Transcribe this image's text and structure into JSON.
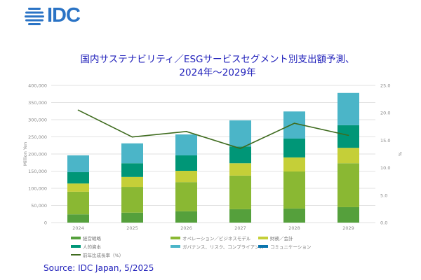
{
  "logo": {
    "text": "IDC"
  },
  "title": {
    "line1": "国内サステナビリティ／ESGサービスセグメント別支出額予測、",
    "line2": "2024年～2029年"
  },
  "source": "Source: IDC Japan, 5/2025",
  "chart_data": {
    "type": "bar",
    "stacked": true,
    "categories": [
      "2024",
      "2025",
      "2026",
      "2027",
      "2028",
      "2029"
    ],
    "ylabel": "Million Yen",
    "ylim": [
      0,
      400000
    ],
    "yticks": [
      "0",
      "50,000",
      "100,000",
      "150,000",
      "200,000",
      "250,000",
      "300,000",
      "350,000",
      "400,000"
    ],
    "y2label": "%",
    "y2lim": [
      0,
      25
    ],
    "y2ticks": [
      "0.0",
      "5.0",
      "10.0",
      "15.0",
      "20.0",
      "25.0"
    ],
    "grid": true,
    "legend_position": "bottom",
    "series": [
      {
        "name": "経営戦略",
        "color": "#55a03c",
        "values": [
          24000,
          29000,
          33000,
          39000,
          41000,
          45000
        ]
      },
      {
        "name": "オペレーション／ビジネスモデル",
        "color": "#8ab833",
        "values": [
          66000,
          75000,
          85000,
          98000,
          108000,
          128000
        ]
      },
      {
        "name": "財務／会計",
        "color": "#c5cf38",
        "values": [
          24000,
          29000,
          33000,
          36000,
          41000,
          45000
        ]
      },
      {
        "name": "人的資本",
        "color": "#009677",
        "values": [
          33000,
          40000,
          45000,
          49000,
          55000,
          66000
        ]
      },
      {
        "name": "ガバナンス、リスク、コンプライアンス",
        "color": "#4bb5c8",
        "values": [
          49000,
          58000,
          61000,
          76000,
          79000,
          94000
        ]
      },
      {
        "name": "コミュニケーション",
        "color": "#0a75ad",
        "values": [
          0,
          0,
          0,
          0,
          0,
          0
        ]
      }
    ],
    "line_series": {
      "name": "前年比成長率（%）",
      "color": "#3e6b1e",
      "axis": "right",
      "values": [
        20.5,
        15.6,
        16.6,
        13.5,
        18.1,
        15.9
      ]
    }
  }
}
